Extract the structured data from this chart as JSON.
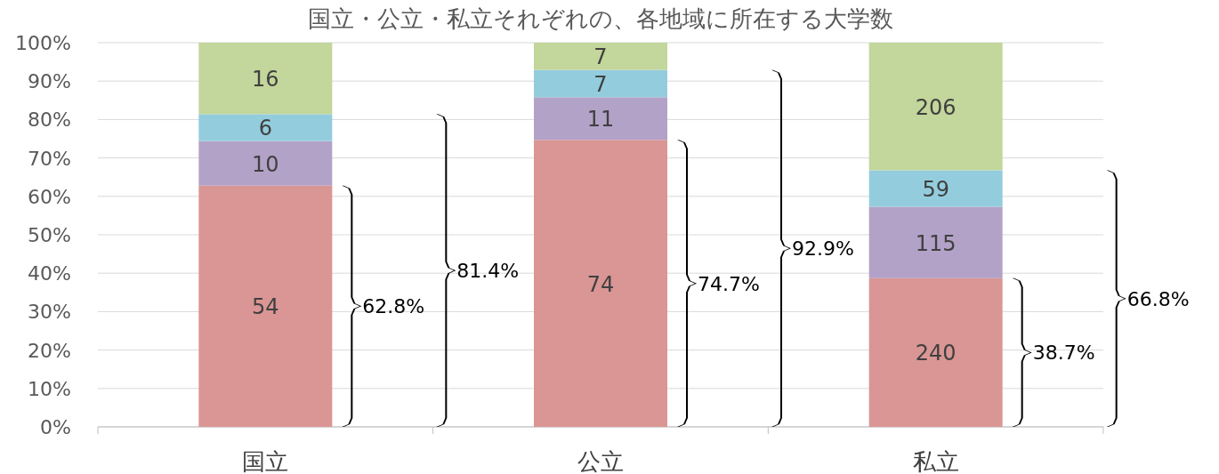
{
  "chart_data": {
    "type": "bar",
    "stacked": true,
    "title": "国立・公立・私立それぞれの、各地域に所在する大学数",
    "categories": [
      "国立",
      "公立",
      "私立"
    ],
    "series": [
      {
        "color": "#d99694",
        "values": [
          62.8,
          74.7,
          38.7
        ]
      },
      {
        "color": "#b3a2c7",
        "values": [
          11.6,
          11.1,
          18.6
        ]
      },
      {
        "color": "#93cddd",
        "values": [
          7.0,
          7.1,
          9.5
        ]
      },
      {
        "color": "#c3d69b",
        "values": [
          18.6,
          7.1,
          33.2
        ]
      }
    ],
    "ylim": [
      0,
      100
    ],
    "yticks": [
      {
        "value": 0,
        "label": "0%"
      },
      {
        "value": 10,
        "label": "10%"
      },
      {
        "value": 20,
        "label": "20%"
      },
      {
        "value": 30,
        "label": "30%"
      },
      {
        "value": 40,
        "label": "40%"
      },
      {
        "value": 50,
        "label": "50%"
      },
      {
        "value": 60,
        "label": "60%"
      },
      {
        "value": 70,
        "label": "70%"
      },
      {
        "value": 80,
        "label": "80%"
      },
      {
        "value": 90,
        "label": "90%"
      },
      {
        "value": 100,
        "label": "100%"
      }
    ],
    "grid": "y",
    "annotations": [
      "54",
      "10",
      "6",
      "16",
      "74",
      "11",
      "7",
      "7",
      "240",
      "115",
      "59",
      "206",
      "62.8%",
      "81.4%",
      "74.7%",
      "92.9%",
      "38.7%",
      "66.8%"
    ]
  }
}
